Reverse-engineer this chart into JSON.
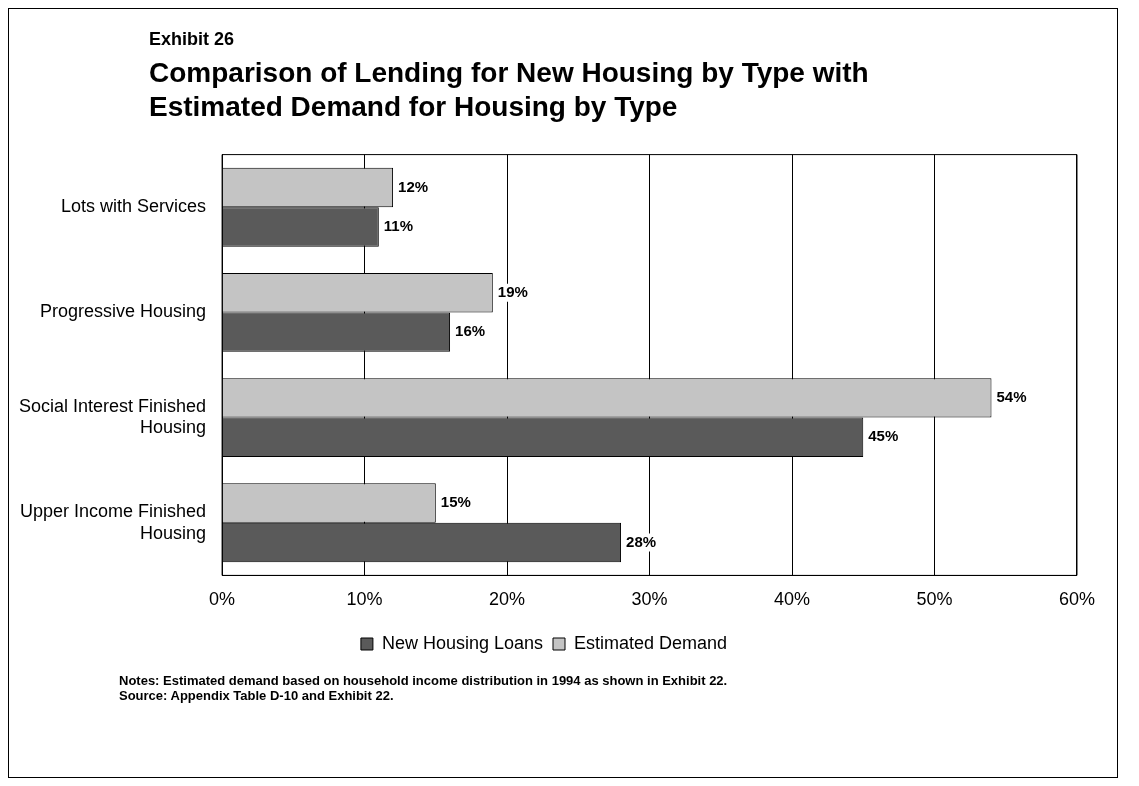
{
  "chart_data": {
    "type": "bar",
    "orientation": "horizontal",
    "subtitle": "Exhibit 26",
    "title": "Comparison of Lending for New Housing by Type with Estimated Demand for Housing by Type",
    "categories": [
      "Lots with Services",
      "Progressive Housing",
      "Social Interest Finished Housing",
      "Upper Income Finished Housing"
    ],
    "series": [
      {
        "name": "Estimated Demand",
        "color": "#c4c4c4",
        "values": [
          12,
          19,
          54,
          15
        ],
        "value_labels": [
          "12%",
          "19%",
          "54%",
          "15%"
        ]
      },
      {
        "name": "New Housing Loans",
        "color": "#5a5a5a",
        "values": [
          11,
          16,
          45,
          28
        ],
        "value_labels": [
          "11%",
          "16%",
          "45%",
          "28%"
        ]
      }
    ],
    "xlim": [
      0,
      60
    ],
    "xticks": [
      {
        "value": 0,
        "label": "0%"
      },
      {
        "value": 10,
        "label": "10%"
      },
      {
        "value": 20,
        "label": "20%"
      },
      {
        "value": 30,
        "label": "30%"
      },
      {
        "value": 40,
        "label": "40%"
      },
      {
        "value": 50,
        "label": "50%"
      },
      {
        "value": 60,
        "label": "60%"
      }
    ],
    "grid": "x",
    "legend": "bottom",
    "annotations": [
      "Notes: Estimated demand based on household income distribution in 1994 as shown in Exhibit 22.",
      "Source:  Appendix Table D-10 and Exhibit 22."
    ]
  }
}
